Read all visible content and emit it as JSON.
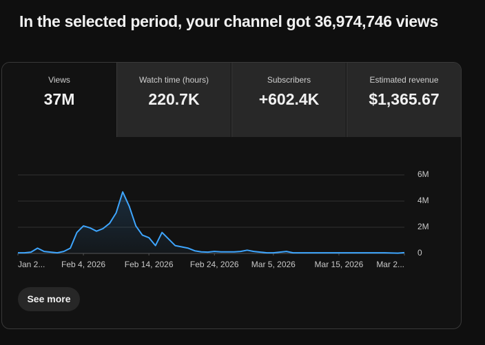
{
  "header": {
    "title": "In the selected period, your channel got 36,974,746 views"
  },
  "tabs": [
    {
      "label": "Views",
      "value": "37M"
    },
    {
      "label": "Watch time (hours)",
      "value": "220.7K"
    },
    {
      "label": "Subscribers",
      "value": "+602.4K"
    },
    {
      "label": "Estimated revenue",
      "value": "$1,365.67"
    }
  ],
  "chart_data": {
    "type": "line",
    "x": [
      "2026-01-25",
      "2026-01-26",
      "2026-01-27",
      "2026-01-28",
      "2026-01-29",
      "2026-01-30",
      "2026-01-31",
      "2026-02-01",
      "2026-02-02",
      "2026-02-03",
      "2026-02-04",
      "2026-02-05",
      "2026-02-06",
      "2026-02-07",
      "2026-02-08",
      "2026-02-09",
      "2026-02-10",
      "2026-02-11",
      "2026-02-12",
      "2026-02-13",
      "2026-02-14",
      "2026-02-15",
      "2026-02-16",
      "2026-02-17",
      "2026-02-18",
      "2026-02-19",
      "2026-02-20",
      "2026-02-21",
      "2026-02-22",
      "2026-02-23",
      "2026-02-24",
      "2026-02-25",
      "2026-02-26",
      "2026-02-27",
      "2026-02-28",
      "2026-03-01",
      "2026-03-02",
      "2026-03-03",
      "2026-03-04",
      "2026-03-05",
      "2026-03-06",
      "2026-03-07",
      "2026-03-08",
      "2026-03-09",
      "2026-03-10",
      "2026-03-11",
      "2026-03-12",
      "2026-03-13",
      "2026-03-14",
      "2026-03-15",
      "2026-03-16",
      "2026-03-17",
      "2026-03-18",
      "2026-03-19",
      "2026-03-20",
      "2026-03-21",
      "2026-03-22",
      "2026-03-23",
      "2026-03-24",
      "2026-03-25"
    ],
    "values": [
      50000,
      50000,
      100000,
      400000,
      150000,
      100000,
      50000,
      150000,
      400000,
      1600000,
      2100000,
      1950000,
      1700000,
      1900000,
      2300000,
      3100000,
      4700000,
      3600000,
      2100000,
      1400000,
      1200000,
      600000,
      1600000,
      1100000,
      600000,
      500000,
      400000,
      200000,
      120000,
      100000,
      150000,
      120000,
      120000,
      120000,
      150000,
      250000,
      150000,
      100000,
      50000,
      50000,
      100000,
      150000,
      50000,
      50000,
      50000,
      50000,
      50000,
      50000,
      50000,
      50000,
      50000,
      50000,
      50000,
      50000,
      50000,
      50000,
      50000,
      30000,
      20000,
      60000
    ],
    "color": "#3ea6ff",
    "xlim": [
      "2026-01-25",
      "2026-03-25"
    ],
    "xticks": [
      {
        "value": "2026-01-25",
        "label": "Jan 2..."
      },
      {
        "value": "2026-02-04",
        "label": "Feb 4, 2026"
      },
      {
        "value": "2026-02-14",
        "label": "Feb 14, 2026"
      },
      {
        "value": "2026-02-24",
        "label": "Feb 24, 2026"
      },
      {
        "value": "2026-03-05",
        "label": "Mar 5, 2026"
      },
      {
        "value": "2026-03-15",
        "label": "Mar 15, 2026"
      },
      {
        "value": "2026-03-25",
        "label": "Mar 2..."
      }
    ],
    "ylim": [
      0,
      6000000
    ],
    "yticks": [
      0,
      {
        "value": 2000000,
        "label": "2M"
      },
      {
        "value": 4000000,
        "label": "4M"
      },
      {
        "value": 6000000,
        "label": "6M"
      }
    ],
    "grid": true
  },
  "button": {
    "label": "See more"
  }
}
